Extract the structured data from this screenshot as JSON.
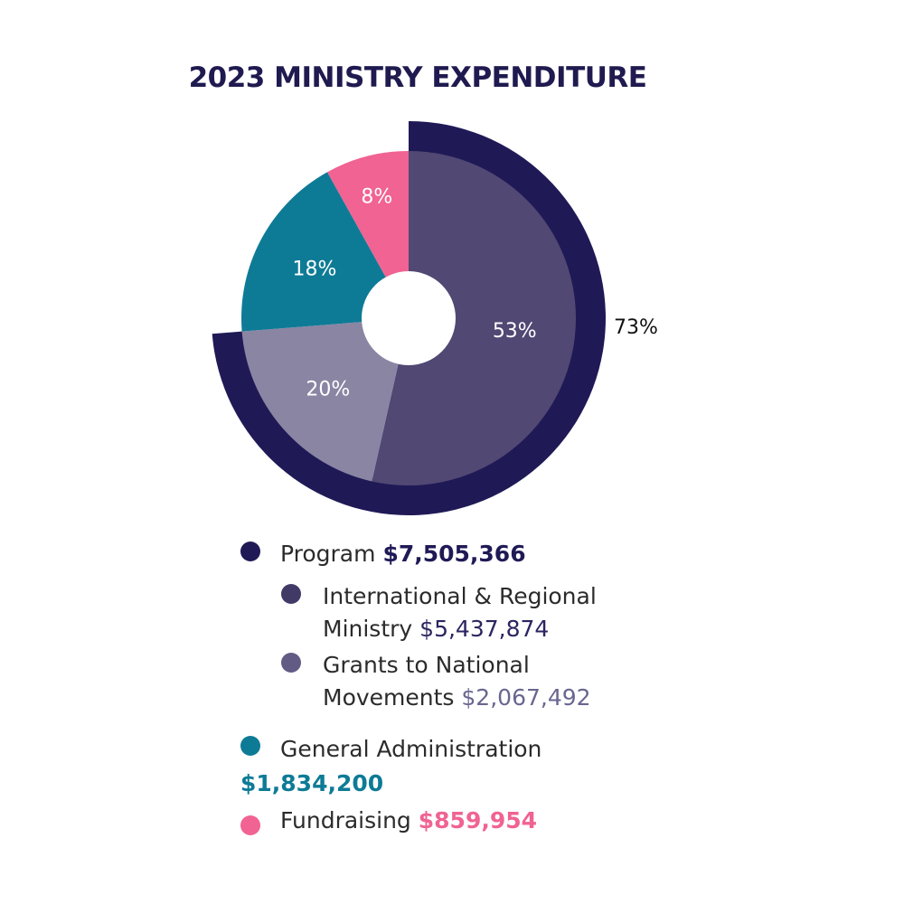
{
  "chart_data": {
    "type": "pie",
    "title": "2023 MINISTRY EXPENDITURE",
    "inner": {
      "categories": [
        "International & Regional Ministry",
        "Grants to National Movements",
        "General Administration",
        "Fundraising"
      ],
      "values": [
        53,
        20,
        18,
        8
      ],
      "labels": [
        "53%",
        "20%",
        "18%",
        "8%"
      ],
      "colors": [
        "#514873",
        "#8a85a3",
        "#0e7b96",
        "#f06392"
      ]
    },
    "outer": {
      "category": "Program",
      "value": 73,
      "label": "73%",
      "color": "#1f1a56"
    }
  },
  "legend": [
    {
      "label": "Program",
      "amount": "$7,505,366",
      "color": "#1f1a56",
      "amount_color": "#1f1a56"
    },
    {
      "label_line1": "International & Regional",
      "label_line2": "Ministry",
      "amount": "$5,437,874",
      "color": "#413a67",
      "amount_color": "#2b2560"
    },
    {
      "label_line1": "Grants to National",
      "label_line2": "Movements",
      "amount": "$2,067,492",
      "color": "#625c85",
      "amount_color": "#6a6690"
    },
    {
      "label": "General Administration",
      "amount": "$1,834,200",
      "color": "#0e7b96",
      "amount_color": "#0e7b96"
    },
    {
      "label": "Fundraising",
      "amount": "$859,954",
      "color": "#f06392",
      "amount_color": "#f06392"
    }
  ]
}
